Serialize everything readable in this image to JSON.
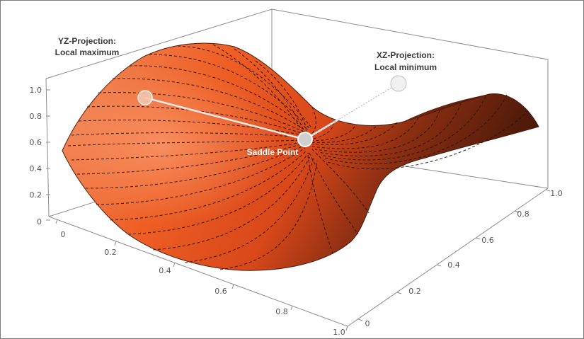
{
  "annotations": {
    "yz_line1": "YZ-Projection:",
    "yz_line2": "Local maximum",
    "xz_line1": "XZ-Projection:",
    "xz_line2": "Local minimum",
    "saddle": "Saddle Point"
  },
  "axes": {
    "z_ticks": [
      "1.0",
      "0.8",
      "0.6",
      "0.4",
      "0.2",
      "0"
    ],
    "x_ticks": [
      "0",
      "0.2",
      "0.4",
      "0.6",
      "0.8",
      "1.0"
    ],
    "y_ticks": [
      "0",
      "0.2",
      "0.4",
      "0.6",
      "0.8",
      "1.0"
    ]
  },
  "colors": {
    "surface_light": "#f08a5a",
    "surface_mid": "#e8531c",
    "surface_dark": "#5a1e0c",
    "contour": "#2a1208"
  }
}
